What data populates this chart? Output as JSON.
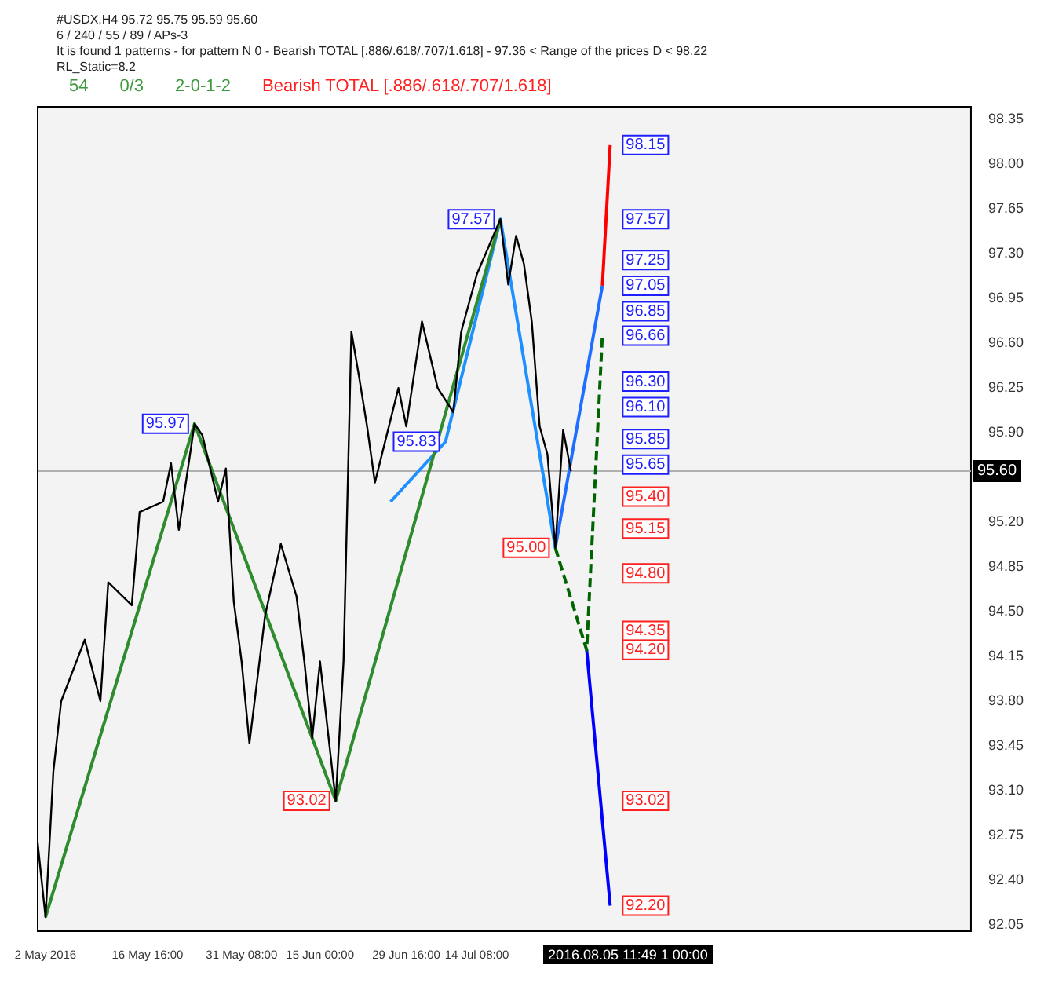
{
  "chart_data": {
    "type": "line",
    "title": "#USDX,H4  95.72 95.75 95.59 95.60",
    "subtitle": "6 / 240 / 55 / 89 / APs-3",
    "categories": [
      null,
      "2 May 2016",
      null,
      null,
      null,
      null,
      null,
      null,
      null,
      null,
      null,
      null,
      null,
      null,
      "16 May 16:00",
      null,
      null,
      null,
      null,
      null,
      null,
      null,
      null,
      null,
      null,
      null,
      "31 May 08:00",
      null,
      null,
      null,
      null,
      null,
      null,
      null,
      null,
      null,
      "15 Jun 00:00",
      null,
      null,
      null,
      null,
      null,
      null,
      null,
      null,
      null,
      null,
      "29 Jun 16:00",
      null,
      null,
      null,
      null,
      null,
      null,
      null,
      null,
      "14 Jul 08:00",
      null,
      null,
      null,
      null,
      null,
      null,
      null,
      null,
      null,
      null,
      null,
      null,
      null,
      null,
      null,
      null,
      null,
      null,
      null,
      null,
      null,
      null,
      null,
      null,
      null,
      null,
      null,
      null,
      null,
      null,
      null,
      null,
      null,
      null,
      null,
      null,
      null,
      null,
      null,
      null,
      null,
      null,
      null,
      null,
      null,
      null,
      null,
      null,
      null,
      null,
      null,
      null,
      null,
      null,
      null,
      null,
      null,
      null,
      null,
      null,
      null,
      null,
      null
    ],
    "series": [
      {
        "color": "#000000",
        "values": [
          92.69,
          92.11,
          93.25,
          93.8,
          null,
          null,
          94.28,
          null,
          93.8,
          94.73,
          null,
          null,
          94.55,
          95.28,
          null,
          null,
          95.36,
          95.66,
          95.14,
          null,
          95.97,
          95.88,
          null,
          95.36,
          95.62,
          94.58,
          94.11,
          93.47,
          null,
          94.47,
          null,
          95.03,
          null,
          94.62,
          94.11,
          93.51,
          94.11,
          null,
          93.02,
          94.11,
          96.69,
          96.33,
          95.95,
          95.51,
          null,
          null,
          96.25,
          95.95,
          null,
          96.77,
          null,
          96.25,
          null,
          96.06,
          96.69,
          null,
          97.14,
          null,
          null,
          97.57,
          97.06,
          97.44,
          97.22,
          96.77,
          95.95,
          95.73,
          95.0,
          95.92,
          95.6,
          null,
          null,
          null,
          null,
          null,
          null,
          null,
          null,
          null,
          null,
          null,
          null,
          null,
          null,
          null,
          null,
          null,
          null,
          null,
          null,
          null,
          null,
          null,
          null,
          null,
          null,
          null,
          null,
          null,
          null,
          null,
          null,
          null,
          null,
          null,
          null,
          null,
          null,
          null,
          null,
          null,
          null,
          null,
          null,
          null,
          null,
          null,
          null,
          null,
          null,
          null
        ]
      },
      {
        "color": "#2e8b2e",
        "values": [
          null,
          92.11,
          null,
          null,
          null,
          null,
          null,
          null,
          null,
          null,
          null,
          null,
          null,
          null,
          null,
          null,
          null,
          null,
          null,
          null,
          95.97,
          null,
          null,
          null,
          null,
          null,
          null,
          null,
          null,
          null,
          null,
          null,
          null,
          null,
          null,
          null,
          null,
          null,
          93.02,
          null,
          null,
          null,
          null,
          null,
          null,
          null,
          null,
          null,
          null,
          null,
          null,
          null,
          null,
          null,
          null,
          null,
          null,
          null,
          null,
          97.57,
          null,
          null,
          null,
          null,
          null,
          null,
          null,
          null,
          null,
          null,
          null,
          null,
          null,
          null,
          null,
          null,
          null,
          null,
          null,
          null,
          null,
          null,
          null,
          null,
          null,
          null,
          null,
          null,
          null,
          null,
          null,
          null,
          null,
          null,
          null,
          null,
          null,
          null,
          null,
          null,
          null,
          null,
          null,
          null,
          null,
          null,
          null,
          null,
          null,
          null,
          null,
          null,
          null,
          null,
          null,
          null,
          null,
          null,
          null,
          null
        ]
      },
      {
        "color": "#1e90ff",
        "values": [
          null,
          null,
          null,
          null,
          null,
          null,
          null,
          null,
          null,
          null,
          null,
          null,
          null,
          null,
          null,
          null,
          null,
          null,
          null,
          null,
          null,
          null,
          null,
          null,
          null,
          null,
          null,
          null,
          null,
          null,
          null,
          null,
          null,
          null,
          null,
          null,
          null,
          null,
          null,
          null,
          null,
          null,
          null,
          null,
          null,
          95.36,
          null,
          null,
          null,
          null,
          null,
          null,
          95.83,
          null,
          null,
          null,
          null,
          null,
          null,
          97.57,
          null,
          null,
          null,
          null,
          null,
          null,
          95.0,
          null,
          null,
          null,
          null,
          null,
          null,
          null,
          null,
          null,
          null,
          null,
          null,
          null,
          null,
          null,
          null,
          null,
          null,
          null,
          null,
          null,
          null,
          null,
          null,
          null,
          null,
          null,
          null,
          null,
          null,
          null,
          null,
          null,
          null,
          null,
          null,
          null,
          null,
          null,
          null,
          null,
          null,
          null,
          null,
          null,
          null,
          null,
          null,
          null,
          null,
          null,
          null,
          null
        ]
      },
      {
        "color": "#1e6fff",
        "values": [
          null,
          null,
          null,
          null,
          null,
          null,
          null,
          null,
          null,
          null,
          null,
          null,
          null,
          null,
          null,
          null,
          null,
          null,
          null,
          null,
          null,
          null,
          null,
          null,
          null,
          null,
          null,
          null,
          null,
          null,
          null,
          null,
          null,
          null,
          null,
          null,
          null,
          null,
          null,
          null,
          null,
          null,
          null,
          null,
          null,
          null,
          null,
          null,
          null,
          null,
          null,
          null,
          null,
          null,
          null,
          null,
          null,
          null,
          null,
          null,
          null,
          null,
          null,
          null,
          null,
          null,
          95.0,
          null,
          null,
          null,
          null,
          null,
          97.05,
          null,
          null,
          null,
          null,
          null,
          null,
          null,
          null,
          null,
          null,
          null,
          null,
          null,
          null,
          null,
          null,
          null,
          null,
          null,
          null,
          null,
          null,
          null,
          null,
          null,
          null,
          null,
          null,
          null,
          null,
          null,
          null,
          null,
          null,
          null,
          null,
          null,
          null,
          null,
          null,
          null,
          null,
          null,
          null,
          null,
          null,
          null
        ]
      },
      {
        "color": "#ff0000",
        "values": [
          null,
          null,
          null,
          null,
          null,
          null,
          null,
          null,
          null,
          null,
          null,
          null,
          null,
          null,
          null,
          null,
          null,
          null,
          null,
          null,
          null,
          null,
          null,
          null,
          null,
          null,
          null,
          null,
          null,
          null,
          null,
          null,
          null,
          null,
          null,
          null,
          null,
          null,
          null,
          null,
          null,
          null,
          null,
          null,
          null,
          null,
          null,
          null,
          null,
          null,
          null,
          null,
          null,
          null,
          null,
          null,
          null,
          null,
          null,
          null,
          null,
          null,
          null,
          null,
          null,
          null,
          null,
          null,
          null,
          null,
          null,
          null,
          97.05,
          98.15,
          null,
          null,
          null,
          null,
          null,
          null,
          null,
          null,
          null,
          null,
          null,
          null,
          null,
          null,
          null,
          null,
          null,
          null,
          null,
          null,
          null,
          null,
          null,
          null,
          null,
          null,
          null,
          null,
          null,
          null,
          null,
          null,
          null,
          null,
          null,
          null,
          null,
          null,
          null,
          null,
          null,
          null,
          null,
          null,
          null,
          null
        ]
      },
      {
        "color": "#006400",
        "line_style": "dashed",
        "values": [
          null,
          null,
          null,
          null,
          null,
          null,
          null,
          null,
          null,
          null,
          null,
          null,
          null,
          null,
          null,
          null,
          null,
          null,
          null,
          null,
          null,
          null,
          null,
          null,
          null,
          null,
          null,
          null,
          null,
          null,
          null,
          null,
          null,
          null,
          null,
          null,
          null,
          null,
          null,
          null,
          null,
          null,
          null,
          null,
          null,
          null,
          null,
          null,
          null,
          null,
          null,
          null,
          null,
          null,
          null,
          null,
          null,
          null,
          null,
          null,
          null,
          null,
          null,
          null,
          null,
          null,
          95.0,
          null,
          null,
          null,
          94.2,
          null,
          96.66,
          null,
          null,
          null,
          null,
          null,
          null,
          null,
          null,
          null,
          null,
          null,
          null,
          null,
          null,
          null,
          null,
          null,
          null,
          null,
          null,
          null,
          null,
          null,
          null,
          null,
          null,
          null,
          null,
          null,
          null,
          null,
          null,
          null,
          null,
          null,
          null,
          null,
          null,
          null,
          null,
          null,
          null,
          null,
          null,
          null,
          null,
          null
        ]
      },
      {
        "color": "#0000ff",
        "values": [
          null,
          null,
          null,
          null,
          null,
          null,
          null,
          null,
          null,
          null,
          null,
          null,
          null,
          null,
          null,
          null,
          null,
          null,
          null,
          null,
          null,
          null,
          null,
          null,
          null,
          null,
          null,
          null,
          null,
          null,
          null,
          null,
          null,
          null,
          null,
          null,
          null,
          null,
          null,
          null,
          null,
          null,
          null,
          null,
          null,
          null,
          null,
          null,
          null,
          null,
          null,
          null,
          null,
          null,
          null,
          null,
          null,
          null,
          null,
          null,
          null,
          null,
          null,
          null,
          null,
          null,
          null,
          null,
          null,
          null,
          94.2,
          null,
          null,
          92.2,
          null,
          null,
          null,
          null,
          null,
          null,
          null,
          null,
          null,
          null,
          null,
          null,
          null,
          null,
          null,
          null,
          null,
          null,
          null,
          null,
          null,
          null,
          null,
          null,
          null,
          null,
          null,
          null,
          null,
          null,
          null,
          null,
          null,
          null,
          null,
          null,
          null,
          null,
          null,
          null,
          null,
          null,
          null,
          null,
          null,
          null
        ]
      }
    ],
    "ylim": [
      92.0,
      98.45
    ],
    "yticks": [
      {
        "value": 92.05,
        "label": "92.05"
      },
      {
        "value": 92.4,
        "label": "92.40"
      },
      {
        "value": 92.75,
        "label": "92.75"
      },
      {
        "value": 93.1,
        "label": "93.10"
      },
      {
        "value": 93.45,
        "label": "93.45"
      },
      {
        "value": 93.8,
        "label": "93.80"
      },
      {
        "value": 94.15,
        "label": "94.15"
      },
      {
        "value": 94.5,
        "label": "94.50"
      },
      {
        "value": 94.85,
        "label": "94.85"
      },
      {
        "value": 95.2,
        "label": "95.20"
      },
      {
        "value": 95.9,
        "label": "95.90"
      },
      {
        "value": 96.25,
        "label": "96.25"
      },
      {
        "value": 96.6,
        "label": "96.60"
      },
      {
        "value": 96.95,
        "label": "96.95"
      },
      {
        "value": 97.3,
        "label": "97.30"
      },
      {
        "value": 97.65,
        "label": "97.65"
      },
      {
        "value": 98.0,
        "label": "98.00"
      },
      {
        "value": 98.35,
        "label": "98.35"
      }
    ],
    "ref_lines": [
      {
        "axis": "y",
        "value": 95.6,
        "label": "95.60",
        "color": "#b0b0b0"
      }
    ],
    "marker": "none",
    "grid": false,
    "legend": false,
    "annotations": [
      "It is found 1 patterns  -  for pattern N 0 - Bearish TOTAL [.886/.618/.707/1.618] - 97.36 < Range of the prices D < 98.22",
      "RL_Static=8.2",
      "54",
      "0/3",
      "2-0-1-2",
      "Bearish TOTAL [.886/.618/.707/1.618]",
      "2016.08.05 11:49 1 00:00",
      {
        "text": "95.97",
        "y": 95.97
      },
      {
        "text": "93.02",
        "y": 93.02
      },
      {
        "text": "95.83",
        "y": 95.83
      },
      {
        "text": "97.57",
        "y": 97.57
      },
      {
        "text": "95.00",
        "y": 95.0
      },
      {
        "text": "98.15",
        "y": 98.15
      },
      {
        "text": "97.57",
        "y": 97.57
      },
      {
        "text": "97.25",
        "y": 97.25
      },
      {
        "text": "97.05",
        "y": 97.05
      },
      {
        "text": "96.85",
        "y": 96.85
      },
      {
        "text": "96.66",
        "y": 96.66
      },
      {
        "text": "96.30",
        "y": 96.3
      },
      {
        "text": "96.10",
        "y": 96.1
      },
      {
        "text": "95.85",
        "y": 95.85
      },
      {
        "text": "95.65",
        "y": 95.65
      },
      {
        "text": "95.40",
        "y": 95.4
      },
      {
        "text": "95.15",
        "y": 95.15
      },
      {
        "text": "94.80",
        "y": 94.8
      },
      {
        "text": "94.35",
        "y": 94.35
      },
      {
        "text": "94.20",
        "y": 94.2
      },
      {
        "text": "93.02",
        "y": 93.02
      },
      {
        "text": "92.20",
        "y": 92.2
      }
    ]
  }
}
